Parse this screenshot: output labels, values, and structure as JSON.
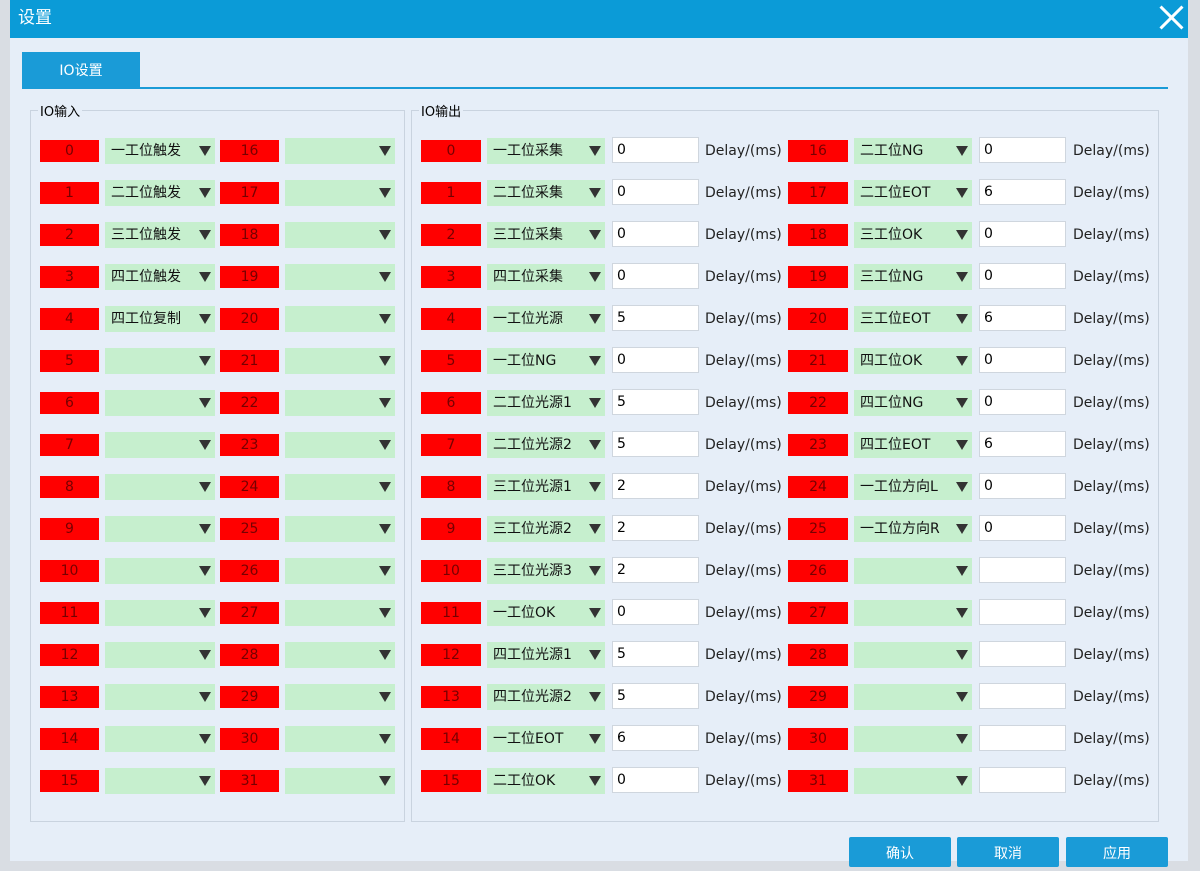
{
  "window": {
    "title": "设置"
  },
  "tab": "IO设置",
  "delay_label": "Delay/(ms)",
  "inputs": {
    "title": "IO输入",
    "ports": [
      "0",
      "1",
      "2",
      "3",
      "4",
      "5",
      "6",
      "7",
      "8",
      "9",
      "10",
      "11",
      "12",
      "13",
      "14",
      "15",
      "16",
      "17",
      "18",
      "19",
      "20",
      "21",
      "22",
      "23",
      "24",
      "25",
      "26",
      "27",
      "28",
      "29",
      "30",
      "31"
    ],
    "values": [
      "一工位触发",
      "二工位触发",
      "三工位触发",
      "四工位触发",
      "四工位复制",
      null,
      null,
      null,
      null,
      null,
      null,
      null,
      null,
      null,
      null,
      null,
      null,
      null,
      null,
      null,
      null,
      null,
      null,
      null,
      null,
      null,
      null,
      null,
      null,
      null,
      null,
      null
    ]
  },
  "outputs": {
    "title": "IO输出",
    "ports": [
      "0",
      "1",
      "2",
      "3",
      "4",
      "5",
      "6",
      "7",
      "8",
      "9",
      "10",
      "11",
      "12",
      "13",
      "14",
      "15",
      "16",
      "17",
      "18",
      "19",
      "20",
      "21",
      "22",
      "23",
      "24",
      "25",
      "26",
      "27",
      "28",
      "29",
      "30",
      "31"
    ],
    "values": [
      "一工位采集",
      "二工位采集",
      "三工位采集",
      "四工位采集",
      "一工位光源",
      "一工位NG",
      "二工位光源1",
      "二工位光源2",
      "三工位光源1",
      "三工位光源2",
      "三工位光源3",
      "一工位OK",
      "四工位光源1",
      "四工位光源2",
      "一工位EOT",
      "二工位OK",
      "二工位NG",
      "二工位EOT",
      "三工位OK",
      "三工位NG",
      "三工位EOT",
      "四工位OK",
      "四工位NG",
      "四工位EOT",
      "一工位方向L",
      "一工位方向R",
      null,
      null,
      null,
      null,
      null,
      null
    ],
    "delays": [
      "0",
      "0",
      "0",
      "0",
      "5",
      "0",
      "5",
      "5",
      "2",
      "2",
      "2",
      "0",
      "5",
      "5",
      "6",
      "0",
      "0",
      "6",
      "0",
      "0",
      "6",
      "0",
      "0",
      "6",
      "0",
      "0",
      null,
      null,
      null,
      null,
      null,
      null
    ]
  },
  "buttons": [
    "确认",
    "取消",
    "应用"
  ]
}
